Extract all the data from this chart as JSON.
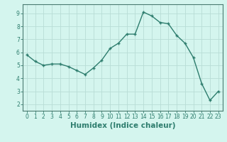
{
  "x": [
    0,
    1,
    2,
    3,
    4,
    5,
    6,
    7,
    8,
    9,
    10,
    11,
    12,
    13,
    14,
    15,
    16,
    17,
    18,
    19,
    20,
    21,
    22,
    23
  ],
  "y": [
    5.8,
    5.3,
    5.0,
    5.1,
    5.1,
    4.9,
    4.6,
    4.3,
    4.8,
    5.4,
    6.3,
    6.7,
    7.4,
    7.4,
    9.1,
    8.8,
    8.3,
    8.2,
    7.3,
    6.7,
    5.6,
    3.6,
    2.3,
    3.0
  ],
  "line_color": "#2e7d6e",
  "bg_color": "#d4f5ee",
  "grid_color": "#b8ddd6",
  "xlabel": "Humidex (Indice chaleur)",
  "ylim": [
    1.5,
    9.7
  ],
  "xlim": [
    -0.5,
    23.5
  ],
  "yticks": [
    2,
    3,
    4,
    5,
    6,
    7,
    8,
    9
  ],
  "xticks": [
    0,
    1,
    2,
    3,
    4,
    5,
    6,
    7,
    8,
    9,
    10,
    11,
    12,
    13,
    14,
    15,
    16,
    17,
    18,
    19,
    20,
    21,
    22,
    23
  ],
  "tick_label_fontsize": 5.5,
  "xlabel_fontsize": 7.5,
  "marker_size": 3,
  "line_width": 1.0,
  "axis_color": "#5a8a80",
  "spine_color": "#4a7a70"
}
